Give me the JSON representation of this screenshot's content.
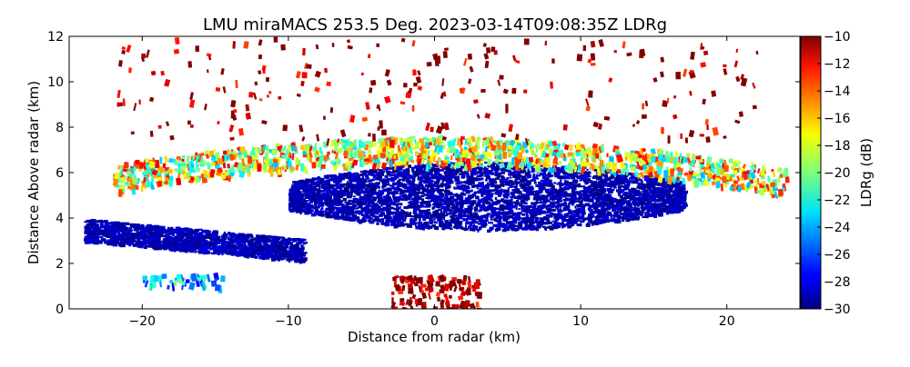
{
  "chart_data": {
    "type": "heatmap",
    "title": "LMU miraMACS 253.5 Deg. 2023-03-14T09:08:35Z  LDRg",
    "xlabel": "Distance from radar (km)",
    "ylabel": "Distance Above radar  (km)",
    "xlim": [
      -25,
      25
    ],
    "ylim": [
      0,
      12
    ],
    "xticks": [
      -20,
      -10,
      0,
      10,
      20
    ],
    "xtick_labels": [
      "−20",
      "−10",
      "0",
      "10",
      "20"
    ],
    "yticks": [
      0,
      2,
      4,
      6,
      8,
      10,
      12
    ],
    "ytick_labels": [
      "0",
      "2",
      "4",
      "6",
      "8",
      "10",
      "12"
    ],
    "colorbar": {
      "label": "LDRg (dB)",
      "range": [
        -30,
        -10
      ],
      "ticks": [
        -30,
        -28,
        -26,
        -24,
        -22,
        -20,
        -18,
        -16,
        -14,
        -12,
        -10
      ],
      "tick_labels": [
        "−30",
        "−28",
        "−26",
        "−24",
        "−22",
        "−20",
        "−18",
        "−16",
        "−14",
        "−12",
        "−10"
      ],
      "colormap": "jet"
    },
    "regions": [
      {
        "name": "main cloud layer core",
        "x": [
          -10,
          17
        ],
        "y": [
          3.5,
          6.5
        ],
        "ldr_db": -29
      },
      {
        "name": "cloud top edge",
        "x": [
          -22,
          24
        ],
        "y": [
          5.5,
          7.5
        ],
        "ldr_db": -18
      },
      {
        "name": "upper sparse echoes",
        "x": [
          -22,
          22
        ],
        "y": [
          7.5,
          12
        ],
        "ldr_db": -10
      },
      {
        "name": "low-level left band",
        "x": [
          -24,
          -9
        ],
        "y": [
          2.5,
          4.5
        ],
        "ldr_db": -29
      },
      {
        "name": "low-level cyan streak",
        "x": [
          -20,
          -14
        ],
        "y": [
          1.0,
          1.6
        ],
        "ldr_db": -24
      },
      {
        "name": "near-radar clutter",
        "x": [
          -3,
          3
        ],
        "y": [
          0,
          1.5
        ],
        "ldr_db": -10
      }
    ]
  }
}
